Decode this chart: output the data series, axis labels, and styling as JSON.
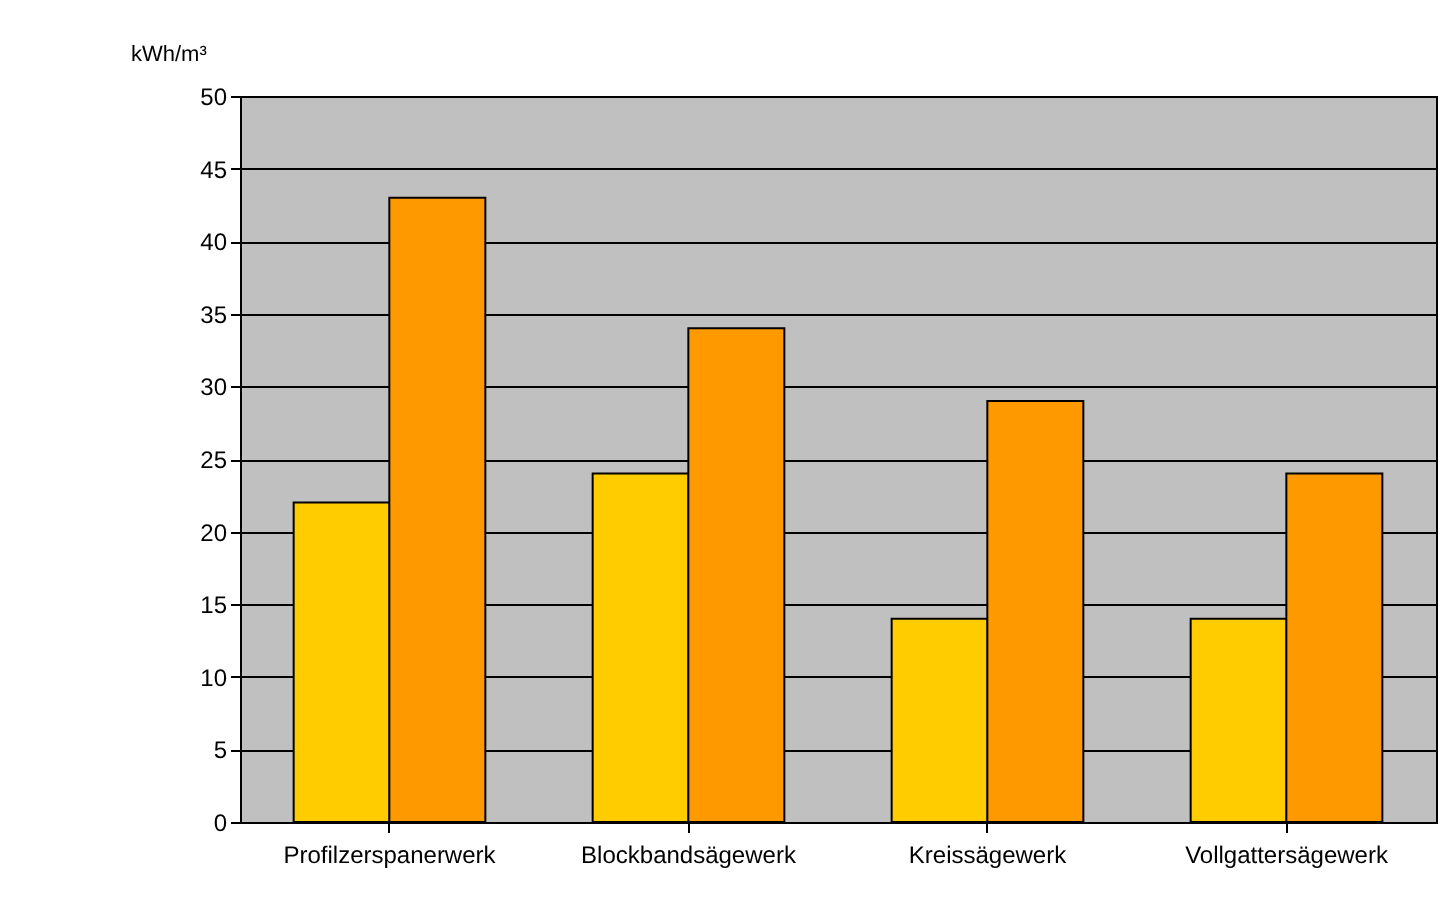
{
  "chart_data": {
    "type": "bar",
    "ylabel": "kWh/m³",
    "categories": [
      "Profilzerspanerwerk",
      "Blockbandsägewerk",
      "Kreissägewerk",
      "Vollgattersägewerk"
    ],
    "series": [
      {
        "color": "#ffcc00",
        "values": [
          22,
          24,
          14,
          14
        ]
      },
      {
        "color": "#ff9900",
        "values": [
          43,
          34,
          29,
          24
        ]
      }
    ],
    "ylim": [
      0,
      50
    ],
    "yticks": [
      0,
      5,
      10,
      15,
      20,
      25,
      30,
      35,
      40,
      45,
      50
    ],
    "grid": "y",
    "legend": false
  }
}
